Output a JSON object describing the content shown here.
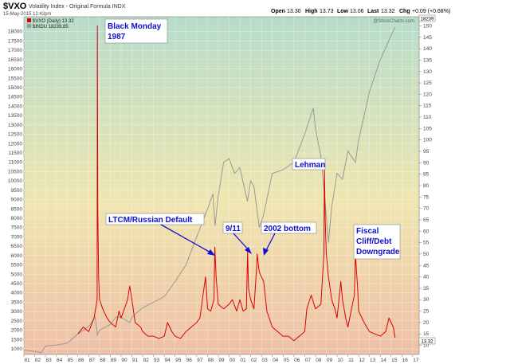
{
  "header": {
    "symbol": "$VXO",
    "name": "Volatility Index - Original Formula INDX",
    "timestamp": "15-May-2015 12:42pm",
    "open_label": "Open",
    "open": "13.30",
    "high_label": "High",
    "high": "13.73",
    "low_label": "Low",
    "low": "13.06",
    "last_label": "Last",
    "last": "13.32",
    "chg_label": "Chg",
    "chg": "+0.09 (+0.68%)",
    "watermark": "@StockCharts.com"
  },
  "legend": [
    {
      "label": "$VXO (Daily) 13.32",
      "color": "#dd0000"
    },
    {
      "label": "$INDU 18239.85",
      "color": "#999999"
    }
  ],
  "badges": {
    "indu_last": "18239",
    "vxo_last": "13.32"
  },
  "annotations": [
    {
      "text": "Black Monday",
      "text2": "1987"
    },
    {
      "text": "LTCM/Russian Default"
    },
    {
      "text": "9/11"
    },
    {
      "text": "2002 bottom"
    },
    {
      "text": "Lehman"
    },
    {
      "text": "Fiscal",
      "text2": "Cliff/Debt",
      "text3": "Downgrade"
    }
  ],
  "colors": {
    "vxo": "#dd0000",
    "indu": "#999999",
    "bg_top": "#b7dccb",
    "bg_mid": "#efe6b0",
    "bg_bottom": "#efc0a8",
    "annotation": "#1010cc"
  },
  "chart_data": {
    "type": "line",
    "title": "$VXO Volatility Index - Original Formula INDX",
    "x_ticks": [
      "81",
      "82",
      "83",
      "84",
      "85",
      "86",
      "87",
      "88",
      "89",
      "90",
      "91",
      "92",
      "93",
      "94",
      "95",
      "96",
      "97",
      "98",
      "99",
      "00",
      "01",
      "02",
      "03",
      "04",
      "05",
      "06",
      "07",
      "08",
      "09",
      "10",
      "11",
      "12",
      "13",
      "14",
      "15",
      "16",
      "17"
    ],
    "xlim": [
      1981.0,
      2017.6
    ],
    "left_axis": {
      "ticks": [
        1000,
        1500,
        2000,
        2500,
        3000,
        3500,
        4000,
        4500,
        5000,
        5500,
        6000,
        6500,
        7000,
        7500,
        8000,
        8500,
        9000,
        9500,
        10000,
        10500,
        11000,
        11500,
        12000,
        12500,
        13000,
        13500,
        14000,
        14500,
        15000,
        15500,
        16000,
        16500,
        17000,
        17500,
        18000
      ],
      "ylim": [
        700,
        18800
      ]
    },
    "right_axis": {
      "ticks": [
        10,
        15,
        20,
        25,
        30,
        35,
        40,
        45,
        50,
        55,
        60,
        65,
        70,
        75,
        80,
        85,
        90,
        95,
        100,
        105,
        110,
        115,
        120,
        125,
        130,
        135,
        140,
        145,
        150
      ],
      "ylim": [
        6,
        154
      ]
    },
    "series": [
      {
        "name": "$VXO (Daily) 13.32",
        "axis": "right",
        "x": [
          1986.0,
          1986.5,
          1987.0,
          1987.5,
          1987.78,
          1987.8,
          1987.84,
          1987.92,
          1988.0,
          1988.3,
          1988.7,
          1989.0,
          1989.5,
          1989.8,
          1990.0,
          1990.6,
          1990.8,
          1991.0,
          1991.3,
          1991.8,
          1992.0,
          1992.5,
          1993.0,
          1993.5,
          1994.0,
          1994.3,
          1994.7,
          1995.0,
          1995.5,
          1996.0,
          1996.5,
          1997.0,
          1997.3,
          1997.82,
          1997.9,
          1998.0,
          1998.3,
          1998.6,
          1998.68,
          1998.8,
          1999.0,
          1999.5,
          2000.0,
          2000.3,
          2000.7,
          2001.0,
          2001.3,
          2001.6,
          2001.71,
          2001.8,
          2002.0,
          2002.3,
          2002.55,
          2002.6,
          2002.8,
          2003.0,
          2003.2,
          2003.5,
          2004.0,
          2004.5,
          2005.0,
          2005.5,
          2006.0,
          2006.5,
          2007.0,
          2007.2,
          2007.6,
          2008.0,
          2008.5,
          2008.78,
          2008.83,
          2008.9,
          2009.0,
          2009.2,
          2009.5,
          2009.8,
          2010.0,
          2010.35,
          2010.5,
          2010.8,
          2011.0,
          2011.3,
          2011.6,
          2011.7,
          2011.9,
          2012.0,
          2012.5,
          2013.0,
          2013.5,
          2014.0,
          2014.5,
          2014.8,
          2015.0,
          2015.2,
          2015.37
        ],
        "y": [
          15,
          18,
          16,
          22,
          30,
          150,
          70,
          40,
          30,
          26,
          22,
          20,
          18,
          25,
          22,
          30,
          36,
          30,
          20,
          18,
          16,
          14,
          14,
          13,
          14,
          20,
          16,
          14,
          13,
          16,
          18,
          20,
          22,
          40,
          35,
          26,
          25,
          30,
          53,
          40,
          28,
          26,
          28,
          30,
          25,
          30,
          25,
          26,
          51,
          35,
          30,
          26,
          44,
          50,
          42,
          40,
          38,
          25,
          18,
          16,
          14,
          14,
          12,
          14,
          16,
          26,
          32,
          26,
          28,
          50,
          88,
          65,
          50,
          40,
          30,
          26,
          22,
          38,
          30,
          22,
          18,
          25,
          32,
          50,
          35,
          25,
          20,
          16,
          15,
          14,
          16,
          22,
          20,
          18,
          13.32
        ]
      },
      {
        "name": "$INDU 18239.85",
        "axis": "left",
        "x": [
          1981.0,
          1982.0,
          1982.6,
          1983.0,
          1984.0,
          1985.0,
          1986.0,
          1987.0,
          1987.6,
          1987.8,
          1988.0,
          1989.0,
          1989.5,
          1990.0,
          1990.8,
          1991.0,
          1992.0,
          1993.0,
          1994.0,
          1995.0,
          1996.0,
          1997.0,
          1998.0,
          1998.5,
          1998.7,
          1999.0,
          1999.5,
          2000.0,
          2000.5,
          2001.0,
          2001.7,
          2002.0,
          2002.3,
          2002.8,
          2003.2,
          2004.0,
          2005.0,
          2006.0,
          2007.0,
          2007.8,
          2008.0,
          2008.5,
          2008.9,
          2009.2,
          2009.5,
          2010.0,
          2010.5,
          2011.0,
          2011.7,
          2012.0,
          2013.0,
          2014.0,
          2015.0,
          2015.37
        ],
        "y": [
          950,
          860,
          800,
          1150,
          1200,
          1300,
          1800,
          2200,
          2700,
          1750,
          2000,
          2300,
          2700,
          2700,
          2400,
          2700,
          3200,
          3500,
          3800,
          4600,
          5500,
          7000,
          8500,
          9300,
          7600,
          9200,
          11000,
          11200,
          10400,
          10700,
          8900,
          10000,
          9700,
          7500,
          8200,
          10400,
          10600,
          11000,
          12500,
          13900,
          12800,
          11300,
          8800,
          6700,
          8600,
          10400,
          10100,
          11600,
          11000,
          12200,
          14800,
          16500,
          17800,
          18239.85
        ]
      }
    ]
  }
}
